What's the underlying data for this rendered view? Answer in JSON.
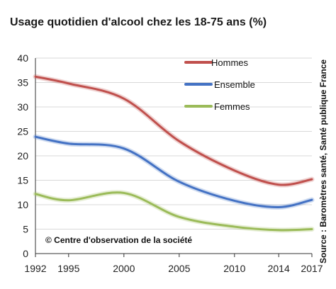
{
  "chart_data": {
    "type": "line",
    "title": "Usage quotidien d'alcool chez les 18-75 ans (%)",
    "x": [
      1992,
      1995,
      2000,
      2005,
      2010,
      2014,
      2017
    ],
    "x_tick_labels": [
      "1992",
      "1995",
      "2000",
      "2005",
      "2010",
      "2014",
      "2017"
    ],
    "xlim": [
      1992,
      2017
    ],
    "ylim": [
      0,
      40
    ],
    "y_ticks": [
      0,
      5,
      10,
      15,
      20,
      25,
      30,
      35,
      40
    ],
    "y_tick_labels": [
      "0",
      "5",
      "10",
      "15",
      "20",
      "25",
      "30",
      "35",
      "40"
    ],
    "grid": true,
    "legend_position": "top-right",
    "series": [
      {
        "name": "Hommes",
        "color": "#c0504d",
        "values": [
          36.2,
          34.8,
          31.7,
          23.0,
          17.0,
          14.1,
          15.2
        ]
      },
      {
        "name": "Ensemble",
        "color": "#4472c4",
        "values": [
          23.9,
          22.5,
          21.5,
          14.7,
          10.8,
          9.5,
          11.0
        ]
      },
      {
        "name": "Femmes",
        "color": "#9bbb59",
        "values": [
          12.2,
          10.9,
          12.4,
          7.5,
          5.5,
          4.8,
          5.0
        ]
      }
    ],
    "annotations": {
      "credit": "© Centre d'observation de la société",
      "source": "Source : Baromètres santé, Santé publique France"
    }
  }
}
